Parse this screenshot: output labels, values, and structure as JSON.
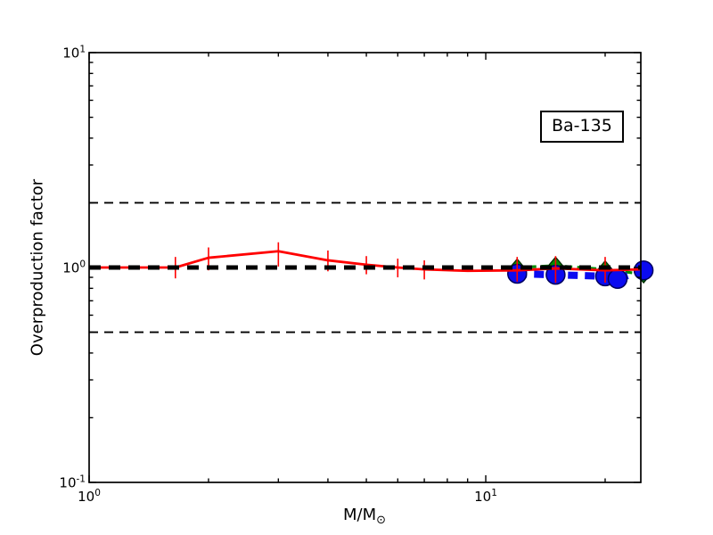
{
  "chart_data": {
    "type": "line",
    "title": "",
    "xlabel_main": "M/M",
    "xlabel_sub": "⊙",
    "ylabel": "Overproduction factor",
    "annotation": "Ba-135",
    "x_scale": "log",
    "y_scale": "log",
    "xlim": [
      1.0,
      24.6
    ],
    "ylim": [
      0.1,
      10.0
    ],
    "grid": false,
    "legend": "none",
    "x_major_ticks": [
      {
        "value": 1,
        "base": "10",
        "exp": "0"
      },
      {
        "value": 10,
        "base": "10",
        "exp": "1"
      }
    ],
    "y_major_ticks": [
      {
        "value": 10,
        "base": "10",
        "exp": "1"
      },
      {
        "value": 1,
        "base": "10",
        "exp": "0"
      },
      {
        "value": 0.1,
        "base": "10",
        "exp": "-1"
      }
    ],
    "reference_lines": [
      {
        "y": 2.0,
        "style": "thin",
        "color": "#000000"
      },
      {
        "y": 1.0,
        "style": "thick",
        "color": "#000000"
      },
      {
        "y": 0.5,
        "style": "thin",
        "color": "#000000"
      }
    ],
    "series": [
      {
        "name": "low-mass-models-red-solid",
        "color": "#ff0000",
        "line": "solid",
        "marker": "none",
        "x": [
          1.0,
          1.65,
          2.0,
          3.0,
          4.0,
          5.0,
          6.0,
          7.0,
          9.0,
          12.0,
          15.0,
          20.0,
          24.6
        ],
        "y": [
          1.0,
          1.0,
          1.11,
          1.19,
          1.08,
          1.03,
          1.0,
          0.98,
          0.965,
          0.97,
          0.99,
          0.97,
          0.98
        ],
        "error_bars": {
          "x": [
            1.65,
            2.0,
            3.0,
            4.0,
            5.0,
            6.0,
            7.0,
            12.0,
            15.0,
            20.0
          ],
          "low": [
            0.89,
            0.97,
            1.01,
            0.96,
            0.93,
            0.9,
            0.88,
            0.86,
            0.85,
            0.85
          ],
          "high": [
            1.12,
            1.24,
            1.31,
            1.2,
            1.13,
            1.1,
            1.08,
            1.12,
            1.13,
            1.12
          ]
        }
      },
      {
        "name": "massive-models-green-dashed-diamonds",
        "color": "#008c00",
        "edge_color": "#002b00",
        "line": "dashed",
        "marker": "diamond",
        "x": [
          12.0,
          15.0,
          20.0,
          25.0
        ],
        "y": [
          1.0,
          1.02,
          0.98,
          0.93
        ]
      },
      {
        "name": "massive-models-blue-dashed-circles",
        "color": "#0b0bf0",
        "edge_color": "#000060",
        "line": "dashed-thick",
        "marker": "circle",
        "x": [
          12.0,
          15.0,
          20.0,
          21.5,
          25.0
        ],
        "y": [
          0.935,
          0.925,
          0.91,
          0.885,
          0.97
        ]
      }
    ]
  }
}
